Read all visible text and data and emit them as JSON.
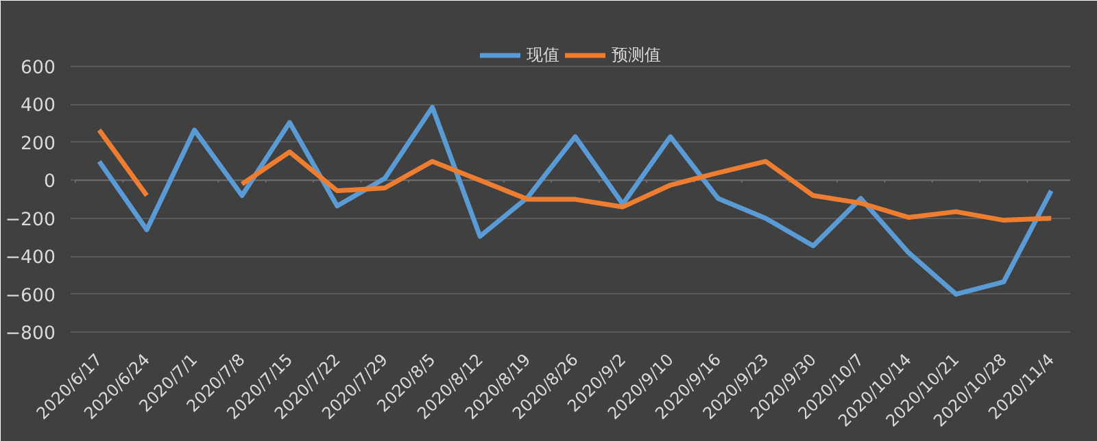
{
  "chart_data": {
    "type": "line",
    "categories": [
      "2020/6/17",
      "2020/6/24",
      "2020/7/1",
      "2020/7/8",
      "2020/7/15",
      "2020/7/22",
      "2020/7/29",
      "2020/8/5",
      "2020/8/12",
      "2020/8/19",
      "2020/8/26",
      "2020/9/2",
      "2020/9/10",
      "2020/9/16",
      "2020/9/23",
      "2020/9/30",
      "2020/10/7",
      "2020/10/14",
      "2020/10/21",
      "2020/10/28",
      "2020/11/4"
    ],
    "series": [
      {
        "name": "现值",
        "color": "#5b9bd5",
        "values": [
          100,
          -260,
          265,
          -80,
          305,
          -135,
          10,
          385,
          -295,
          -90,
          230,
          -125,
          230,
          -95,
          -200,
          -345,
          -95,
          -380,
          -600,
          -535,
          -55
        ]
      },
      {
        "name": "预测值",
        "color": "#ed7d31",
        "values": [
          265,
          -80,
          null,
          -20,
          150,
          -55,
          -40,
          100,
          0,
          -100,
          -100,
          -140,
          -25,
          40,
          100,
          -80,
          -120,
          -195,
          -165,
          -210,
          -200
        ]
      }
    ],
    "ylim": [
      -850,
      730
    ],
    "yticks": [
      -800,
      -600,
      -400,
      -200,
      0,
      200,
      400,
      600
    ],
    "grid": "y",
    "legend": "top",
    "marker": "none",
    "line_style": "solid"
  }
}
